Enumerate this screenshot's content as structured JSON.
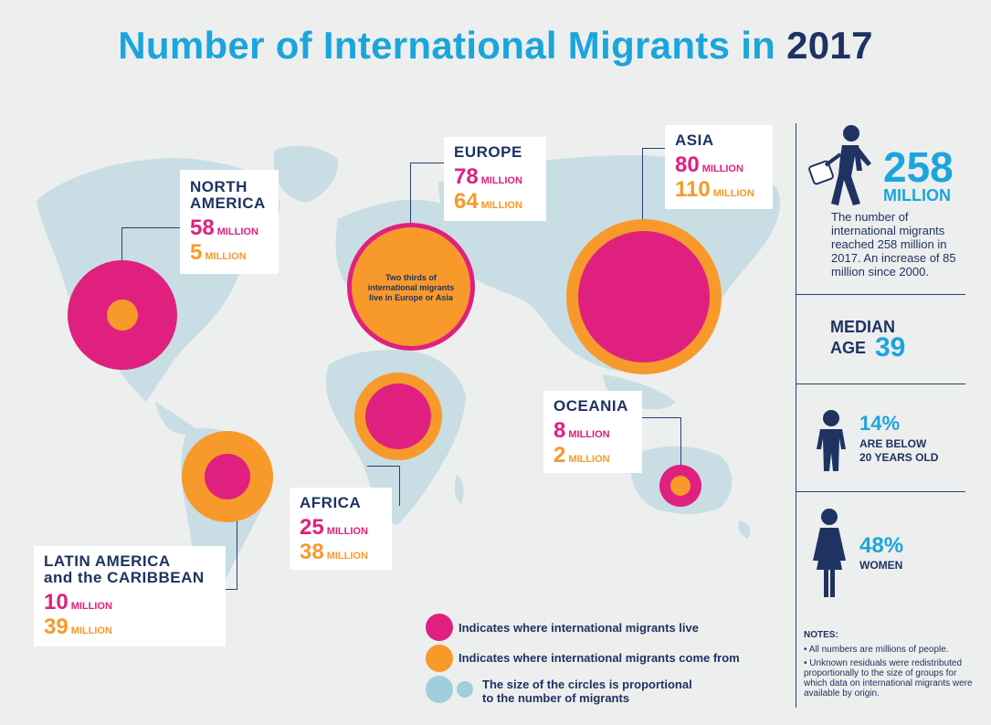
{
  "title": {
    "main": "Number of International Migrants in",
    "year": "2017"
  },
  "colors": {
    "live": "#e0207f",
    "origin": "#f79a2b",
    "accent": "#1aa6dc",
    "navy": "#1f3361",
    "map": "#c9dde4"
  },
  "regions": {
    "north_america": {
      "name1": "NORTH",
      "name2": "AMERICA",
      "live": "58",
      "origin": "5"
    },
    "europe": {
      "name": "EUROPE",
      "live": "78",
      "origin": "64",
      "note": "Two thirds of international migrants live in Europe or Asia"
    },
    "asia": {
      "name": "ASIA",
      "live": "80",
      "origin": "110"
    },
    "oceania": {
      "name": "OCEANIA",
      "live": "8",
      "origin": "2"
    },
    "africa": {
      "name": "AFRICA",
      "live": "25",
      "origin": "38"
    },
    "latin_america": {
      "name1": "LATIN AMERICA",
      "name2": "and the CARIBBEAN",
      "live": "10",
      "origin": "39"
    },
    "unit": "MILLION"
  },
  "sidebar": {
    "total_value": "258",
    "total_unit": "MILLION",
    "total_desc": "The number of international migrants reached 258 million in 2017. An increase of 85 million since 2000.",
    "median_label1": "MEDIAN",
    "median_label2": "AGE",
    "median_value": "39",
    "children_value": "14%",
    "children_label1": "ARE BELOW",
    "children_label2": "20 YEARS OLD",
    "women_value": "48%",
    "women_label": "WOMEN"
  },
  "legend": {
    "live": "Indicates where international migrants live",
    "origin": "Indicates where international migrants come from",
    "size1": "The size of the circles is proportional",
    "size2": "to the number of migrants"
  },
  "notes": {
    "title": "NOTES:",
    "item1": "• All numbers are millions of people.",
    "item2": "• Unknown residuals were redistributed proportionally to the size of groups for which data on international migrants were available by origin."
  }
}
